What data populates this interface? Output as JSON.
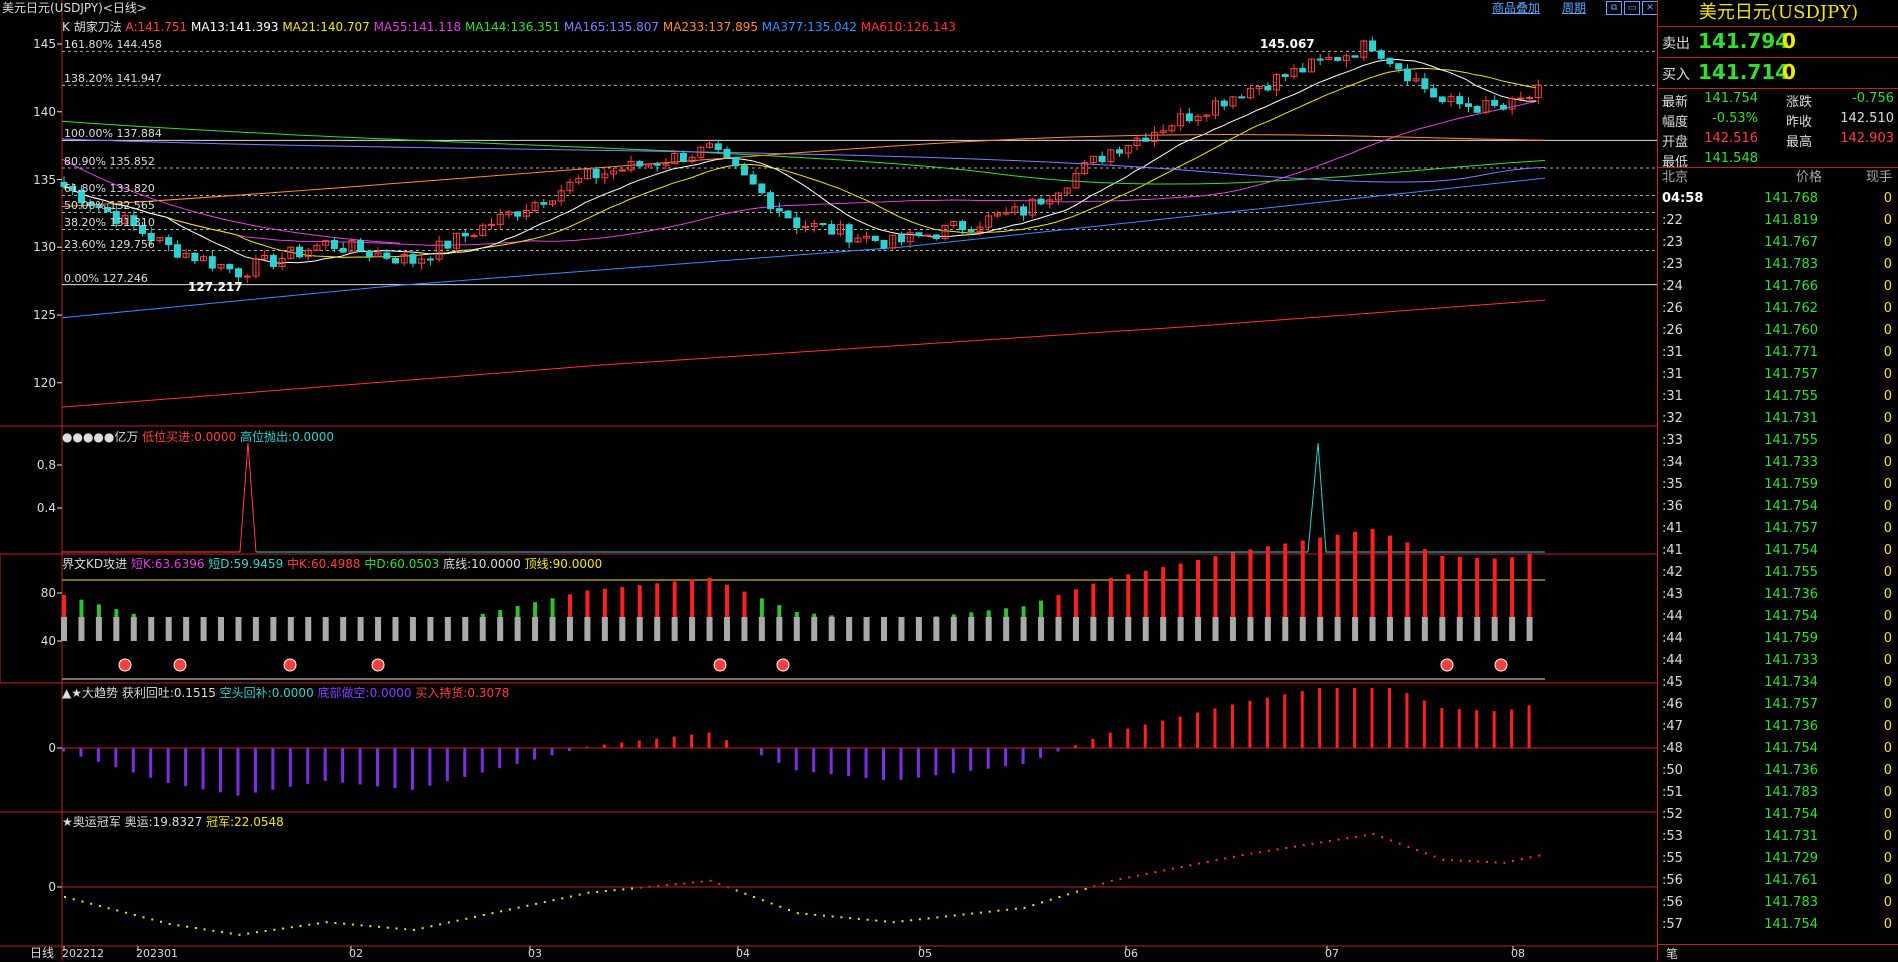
{
  "window": {
    "title": "美元日元(USDJPY)<日线>",
    "menu_overlay": "商品叠加",
    "menu_period": "周期"
  },
  "main_legend": [
    {
      "text": "K",
      "color": "#dddddd"
    },
    {
      "text": "胡家刀法",
      "color": "#dddddd"
    },
    {
      "text": "A:141.751",
      "color": "#ff4040"
    },
    {
      "text": "MA13:141.393",
      "color": "#ffffff"
    },
    {
      "text": "MA21:140.707",
      "color": "#f5e600"
    },
    {
      "text": "MA55:141.118",
      "color": "#e040e0"
    },
    {
      "text": "MA144:136.351",
      "color": "#30e030"
    },
    {
      "text": "MA165:135.807",
      "color": "#8080ff"
    },
    {
      "text": "MA233:137.895",
      "color": "#ff9020"
    },
    {
      "text": "MA377:135.042",
      "color": "#3090ff"
    },
    {
      "text": "MA610:126.143",
      "color": "#ff3040"
    }
  ],
  "price_axis": [
    "145",
    "140",
    "135",
    "130",
    "125",
    "120"
  ],
  "fib_levels": [
    {
      "text": "161.80% 144.458",
      "price": 144.458
    },
    {
      "text": "138.20% 141.947",
      "price": 141.947
    },
    {
      "text": "100.00% 137.884",
      "price": 137.884
    },
    {
      "text": "80.90% 135.852",
      "price": 135.852
    },
    {
      "text": "61.80% 133.820",
      "price": 133.82
    },
    {
      "text": "50.00% 132.565",
      "price": 132.565
    },
    {
      "text": "38.20% 131.310",
      "price": 131.31
    },
    {
      "text": "23.60% 129.756",
      "price": 129.756
    },
    {
      "text": "0.00% 127.246",
      "price": 127.246
    }
  ],
  "price_marks": {
    "high": "145.067",
    "low": "127.217"
  },
  "panel2": {
    "legend": [
      {
        "text": "●●●●●亿万",
        "color": "#dddddd"
      },
      {
        "text": "低位买进:0.0000",
        "color": "#ff4040"
      },
      {
        "text": "高位抛出:0.0000",
        "color": "#30d0d0"
      }
    ],
    "axis": [
      "0.8",
      "0.4"
    ]
  },
  "panel3": {
    "legend": [
      {
        "text": "界文KD攻进",
        "color": "#dddddd"
      },
      {
        "text": "短K:63.6396",
        "color": "#e040e0"
      },
      {
        "text": "短D:59.9459",
        "color": "#30d0d0"
      },
      {
        "text": "中K:60.4988",
        "color": "#ff4040"
      },
      {
        "text": "中D:60.0503",
        "color": "#30e030"
      },
      {
        "text": "底线:10.0000",
        "color": "#dddddd"
      },
      {
        "text": "顶线:90.0000",
        "color": "#f5e600"
      }
    ],
    "axis": [
      "80",
      "40"
    ]
  },
  "panel4": {
    "legend": [
      {
        "text": "▲★大趋势",
        "color": "#dddddd"
      },
      {
        "text": "获利回吐:0.1515",
        "color": "#dddddd"
      },
      {
        "text": "空头回补:0.0000",
        "color": "#30d0d0"
      },
      {
        "text": "底部做空:0.0000",
        "color": "#8040ff"
      },
      {
        "text": "买入持货:0.3078",
        "color": "#ff4040"
      }
    ],
    "axis": [
      "0"
    ]
  },
  "panel5": {
    "legend": [
      {
        "text": "★奥运冠军",
        "color": "#dddddd"
      },
      {
        "text": "奥运:19.8327",
        "color": "#dddddd"
      },
      {
        "text": "冠军:22.0548",
        "color": "#f5e600"
      }
    ],
    "axis": [
      "0"
    ]
  },
  "time_axis": {
    "label": "日线",
    "ticks": [
      "202212",
      "202301",
      "02",
      "03",
      "04",
      "05",
      "06",
      "07",
      "08"
    ]
  },
  "right_panel": {
    "title": "美元日元(USDJPY)",
    "sell": {
      "label": "卖出",
      "price": "141.794",
      "vol": "0"
    },
    "buy": {
      "label": "买入",
      "price": "141.714",
      "vol": "0"
    },
    "stats": [
      {
        "label": "最新",
        "value": "141.754",
        "vcolor": "#30e030",
        "label2": "涨跌",
        "value2": "-0.756",
        "v2color": "#30e030"
      },
      {
        "label": "幅度",
        "value": "-0.53%",
        "vcolor": "#30e030",
        "label2": "昨收",
        "value2": "142.510",
        "v2color": "#dddddd"
      },
      {
        "label": "开盘",
        "value": "142.516",
        "vcolor": "#ff4040",
        "label2": "最高",
        "value2": "142.903",
        "v2color": "#ff4040"
      },
      {
        "label": "最低",
        "value": "141.548",
        "vcolor": "#30e030",
        "label2": "",
        "value2": "",
        "v2color": "#dddddd"
      }
    ],
    "tick_header": {
      "time": "北京",
      "price": "价格",
      "vol": "现手"
    },
    "ticks": [
      {
        "time": "04:58",
        "price": "141.768",
        "vol": "0"
      },
      {
        "time": ":22",
        "price": "141.819",
        "vol": "0"
      },
      {
        "time": ":23",
        "price": "141.767",
        "vol": "0"
      },
      {
        "time": ":23",
        "price": "141.783",
        "vol": "0"
      },
      {
        "time": ":24",
        "price": "141.766",
        "vol": "0"
      },
      {
        "time": ":26",
        "price": "141.762",
        "vol": "0"
      },
      {
        "time": ":26",
        "price": "141.760",
        "vol": "0"
      },
      {
        "time": ":31",
        "price": "141.771",
        "vol": "0"
      },
      {
        "time": ":31",
        "price": "141.757",
        "vol": "0"
      },
      {
        "time": ":31",
        "price": "141.755",
        "vol": "0"
      },
      {
        "time": ":32",
        "price": "141.731",
        "vol": "0"
      },
      {
        "time": ":33",
        "price": "141.755",
        "vol": "0"
      },
      {
        "time": ":34",
        "price": "141.733",
        "vol": "0"
      },
      {
        "time": ":35",
        "price": "141.759",
        "vol": "0"
      },
      {
        "time": ":36",
        "price": "141.754",
        "vol": "0"
      },
      {
        "time": ":41",
        "price": "141.757",
        "vol": "0"
      },
      {
        "time": ":41",
        "price": "141.754",
        "vol": "0"
      },
      {
        "time": ":42",
        "price": "141.755",
        "vol": "0"
      },
      {
        "time": ":43",
        "price": "141.736",
        "vol": "0"
      },
      {
        "time": ":44",
        "price": "141.754",
        "vol": "0"
      },
      {
        "time": ":44",
        "price": "141.759",
        "vol": "0"
      },
      {
        "time": ":44",
        "price": "141.733",
        "vol": "0"
      },
      {
        "time": ":45",
        "price": "141.734",
        "vol": "0"
      },
      {
        "time": ":46",
        "price": "141.757",
        "vol": "0"
      },
      {
        "time": ":47",
        "price": "141.736",
        "vol": "0"
      },
      {
        "time": ":48",
        "price": "141.754",
        "vol": "0"
      },
      {
        "time": ":50",
        "price": "141.736",
        "vol": "0"
      },
      {
        "time": ":51",
        "price": "141.783",
        "vol": "0"
      },
      {
        "time": ":52",
        "price": "141.754",
        "vol": "0"
      },
      {
        "time": ":53",
        "price": "141.731",
        "vol": "0"
      },
      {
        "time": ":55",
        "price": "141.729",
        "vol": "0"
      },
      {
        "time": ":56",
        "price": "141.761",
        "vol": "0"
      },
      {
        "time": ":56",
        "price": "141.783",
        "vol": "0"
      },
      {
        "time": ":57",
        "price": "141.754",
        "vol": "0"
      }
    ],
    "footer_tab": "笔"
  },
  "colors": {
    "border": "#c02020",
    "up": "#ff4040",
    "down": "#30d0d0",
    "menu": "#5aa8ff"
  }
}
